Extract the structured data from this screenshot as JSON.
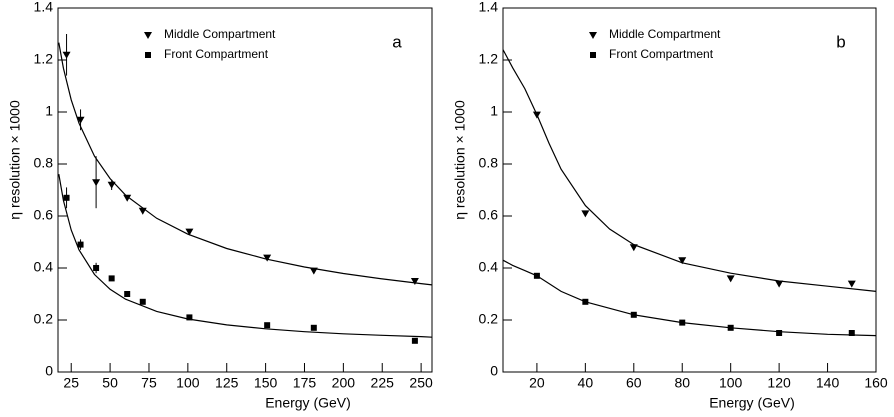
{
  "chart_data": [
    {
      "type": "scatter",
      "panel_label": "a",
      "xlabel": "Energy (GeV)",
      "ylabel": "η resolution × 1000",
      "xlim": [
        16.5,
        257
      ],
      "ylim": [
        0,
        1.4
      ],
      "xticks": [
        25,
        50,
        75,
        100,
        125,
        150,
        175,
        200,
        225,
        250
      ],
      "yticks": [
        0,
        0.2,
        0.4,
        0.6,
        0.8,
        1,
        1.2,
        1.4
      ],
      "series": [
        {
          "name": "Middle Compartment",
          "marker": "triangle-down",
          "color": "#000000",
          "x": [
            22,
            31,
            41,
            51,
            61,
            71,
            101,
            151,
            181,
            246
          ],
          "values": [
            1.22,
            0.97,
            0.73,
            0.72,
            0.67,
            0.62,
            0.54,
            0.44,
            0.39,
            0.35
          ],
          "errors": [
            0.08,
            0.04,
            0.1,
            0.02,
            0.01,
            0.01,
            0.01,
            0.01,
            0.01,
            0.01
          ]
        },
        {
          "name": "Front Compartment",
          "marker": "square",
          "color": "#000000",
          "x": [
            22,
            31,
            41,
            51,
            61,
            71,
            101,
            151,
            181,
            246
          ],
          "values": [
            0.67,
            0.49,
            0.4,
            0.36,
            0.3,
            0.27,
            0.21,
            0.18,
            0.17,
            0.12
          ],
          "errors": [
            0.04,
            0.02,
            0.02,
            0.01,
            0.01,
            0.01,
            0.01,
            0.01,
            0.01,
            0.01
          ]
        }
      ],
      "fits": [
        {
          "x": [
            17,
            20,
            25,
            30,
            40,
            50,
            60,
            80,
            100,
            125,
            150,
            175,
            200,
            225,
            250,
            257
          ],
          "values": [
            1.267,
            1.169,
            1.047,
            0.957,
            0.83,
            0.744,
            0.68,
            0.591,
            0.53,
            0.475,
            0.435,
            0.404,
            0.379,
            0.358,
            0.34,
            0.335
          ]
        },
        {
          "x": [
            17,
            20,
            25,
            30,
            40,
            50,
            60,
            80,
            100,
            125,
            150,
            175,
            200,
            225,
            250,
            257
          ],
          "values": [
            0.761,
            0.66,
            0.546,
            0.47,
            0.375,
            0.318,
            0.28,
            0.233,
            0.204,
            0.181,
            0.166,
            0.155,
            0.147,
            0.141,
            0.136,
            0.134
          ]
        }
      ]
    },
    {
      "type": "scatter",
      "panel_label": "b",
      "xlabel": "Energy (GeV)",
      "ylabel": "η resolution × 1000",
      "xlim": [
        6,
        160
      ],
      "ylim": [
        0,
        1.4
      ],
      "xticks": [
        20,
        40,
        60,
        80,
        100,
        120,
        140,
        160
      ],
      "yticks": [
        0,
        0.2,
        0.4,
        0.6,
        0.8,
        1,
        1.2,
        1.4
      ],
      "series": [
        {
          "name": "Middle Compartment",
          "marker": "triangle-down",
          "color": "#000000",
          "x": [
            20,
            40,
            60,
            80,
            100,
            120,
            150
          ],
          "values": [
            0.99,
            0.61,
            0.48,
            0.43,
            0.36,
            0.34,
            0.34
          ]
        },
        {
          "name": "Front Compartment",
          "marker": "square",
          "color": "#000000",
          "x": [
            20,
            40,
            60,
            80,
            100,
            120,
            150
          ],
          "values": [
            0.37,
            0.27,
            0.22,
            0.19,
            0.17,
            0.15,
            0.15
          ]
        }
      ],
      "fits": [
        {
          "x": [
            6,
            10,
            15,
            20,
            25,
            30,
            40,
            50,
            60,
            80,
            100,
            120,
            140,
            160
          ],
          "values": [
            1.24,
            1.17,
            1.09,
            0.99,
            0.88,
            0.78,
            0.64,
            0.55,
            0.49,
            0.42,
            0.38,
            0.35,
            0.33,
            0.31
          ]
        },
        {
          "x": [
            6,
            10,
            15,
            20,
            30,
            40,
            60,
            80,
            100,
            120,
            140,
            160
          ],
          "values": [
            0.43,
            0.41,
            0.39,
            0.37,
            0.31,
            0.27,
            0.22,
            0.19,
            0.17,
            0.155,
            0.145,
            0.14
          ]
        }
      ]
    }
  ]
}
